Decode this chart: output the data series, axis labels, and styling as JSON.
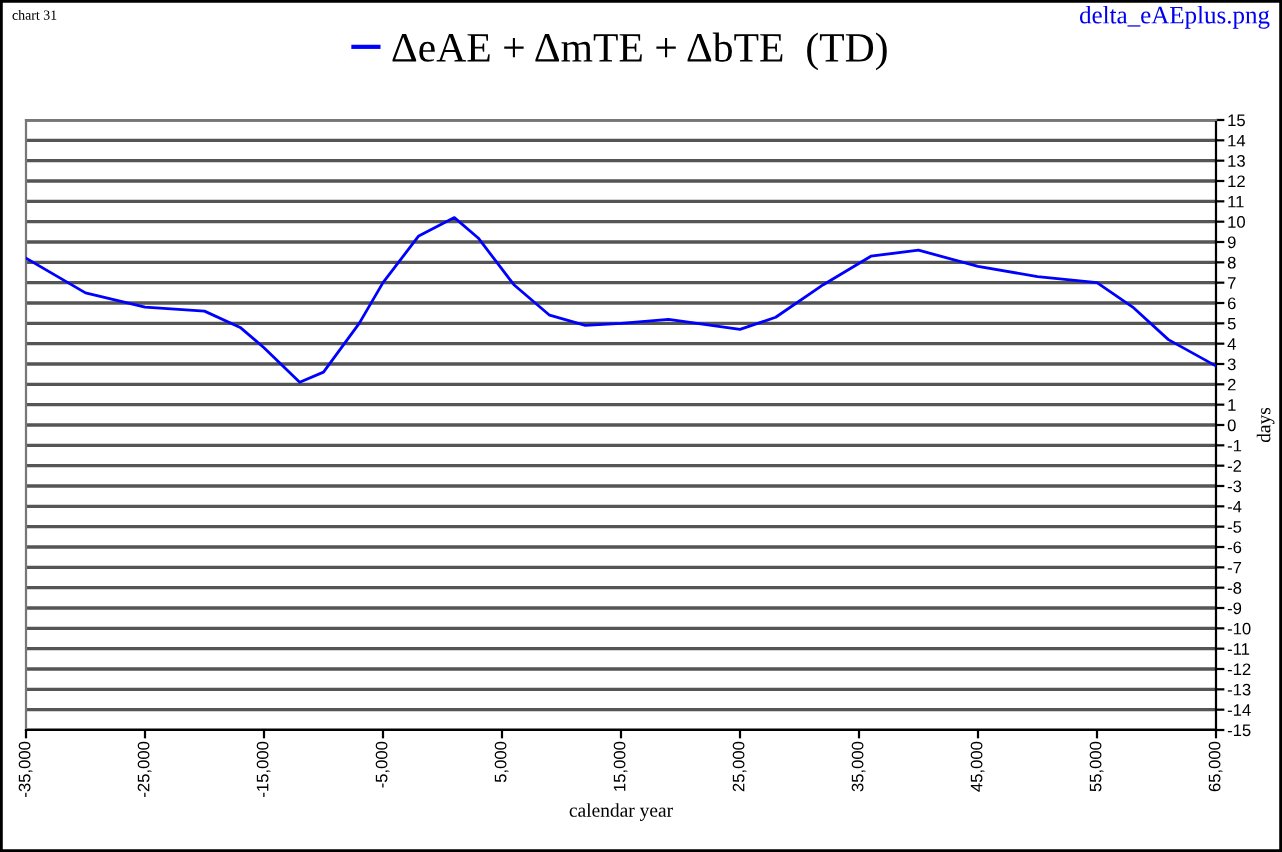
{
  "chart_data": {
    "type": "line",
    "xlabel": "calendar year",
    "ylabel": "days",
    "annotations": [
      "chart 31",
      "delta_eAEplus.png"
    ],
    "x": [
      -35000,
      -30000,
      -25000,
      -20000,
      -17000,
      -15000,
      -12000,
      -10000,
      -7000,
      -5000,
      -2000,
      1000,
      3000,
      6000,
      9000,
      12000,
      15000,
      19000,
      25000,
      28000,
      32000,
      36000,
      40000,
      45000,
      50000,
      55000,
      58000,
      61000,
      65000
    ],
    "series": [
      {
        "name": "ΔeAE + ΔmTE + ΔbTE  (TD)",
        "color": "#0000ff",
        "values": [
          8.2,
          6.5,
          5.8,
          5.6,
          4.8,
          3.8,
          2.1,
          2.6,
          5.0,
          7.0,
          9.3,
          10.2,
          9.2,
          6.9,
          5.4,
          4.9,
          5.0,
          5.2,
          4.7,
          5.3,
          6.9,
          8.3,
          8.6,
          7.8,
          7.3,
          7.0,
          5.8,
          4.2,
          2.9
        ]
      }
    ],
    "xlim": [
      -35000,
      65000
    ],
    "xticks": [
      {
        "value": -35000,
        "label": "-35,000"
      },
      {
        "value": -25000,
        "label": "-25,000"
      },
      {
        "value": -15000,
        "label": "-15,000"
      },
      {
        "value": -5000,
        "label": "-5,000"
      },
      {
        "value": 5000,
        "label": "5,000"
      },
      {
        "value": 15000,
        "label": "15,000"
      },
      {
        "value": 25000,
        "label": "25,000"
      },
      {
        "value": 35000,
        "label": "35,000"
      },
      {
        "value": 45000,
        "label": "45,000"
      },
      {
        "value": 55000,
        "label": "55,000"
      },
      {
        "value": 65000,
        "label": "65,000"
      }
    ],
    "ylim": [
      -15,
      15
    ],
    "yticks": [
      -15,
      -14,
      -13,
      -12,
      -11,
      -10,
      -9,
      -8,
      -7,
      -6,
      -5,
      -4,
      -3,
      -2,
      -1,
      0,
      1,
      2,
      3,
      4,
      5,
      6,
      7,
      8,
      9,
      10,
      11,
      12,
      13,
      14,
      15
    ],
    "grid": "y",
    "legend": "top",
    "marker": "none",
    "line_style": "solid"
  }
}
